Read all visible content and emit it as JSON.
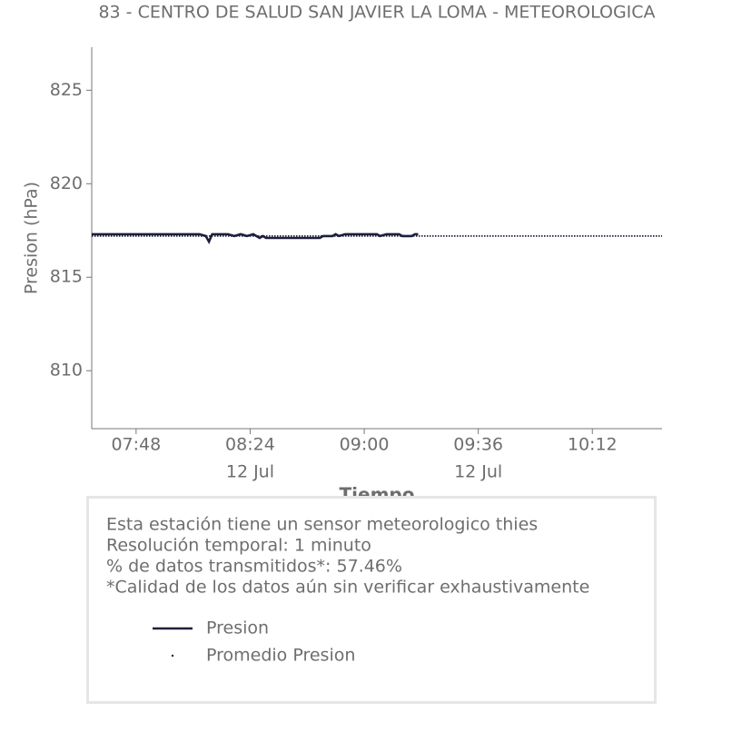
{
  "chart_data": {
    "type": "line",
    "title": "83 - CENTRO DE SALUD SAN JAVIER LA LOMA - METEOROLOGICA",
    "xlabel": "Tiempo",
    "ylabel": "Presion (hPa)",
    "xlim": [
      454,
      634
    ],
    "ylim": [
      806.9,
      827.3
    ],
    "xticks": [
      {
        "value": 468,
        "label": "07:48"
      },
      {
        "value": 504,
        "label": "08:24"
      },
      {
        "value": 540,
        "label": "09:00"
      },
      {
        "value": 576,
        "label": "09:36"
      },
      {
        "value": 612,
        "label": "10:12"
      }
    ],
    "xtick_sublabels": [
      null,
      "12 Jul",
      null,
      "12 Jul",
      null
    ],
    "yticks": [
      810,
      815,
      820,
      825
    ],
    "series": [
      {
        "name": "Presion",
        "color": "#1e1e3c",
        "style": "solid",
        "x": [
          454,
          488,
          490,
          491,
          492,
          497,
          499,
          501,
          503,
          505,
          507,
          508,
          509,
          526,
          527,
          530,
          531,
          532,
          534,
          544,
          545,
          547,
          551,
          552,
          555,
          556,
          557
        ],
        "values": [
          817.3,
          817.3,
          817.2,
          816.9,
          817.3,
          817.3,
          817.2,
          817.3,
          817.2,
          817.3,
          817.1,
          817.2,
          817.1,
          817.1,
          817.2,
          817.2,
          817.3,
          817.2,
          817.3,
          817.3,
          817.2,
          817.3,
          817.3,
          817.2,
          817.2,
          817.3,
          817.3
        ]
      },
      {
        "name": "Promedio Presion",
        "color": "#1e1e3c",
        "style": "dotted",
        "x": [
          454,
          634
        ],
        "values": [
          817.2,
          817.2
        ]
      }
    ],
    "info": [
      "Esta estación tiene un sensor meteorologico thies",
      "Resolución temporal: 1 minuto",
      "% de datos transmitidos*: 57.46%",
      "*Calidad de los datos aún sin verificar exhaustivamente"
    ]
  }
}
